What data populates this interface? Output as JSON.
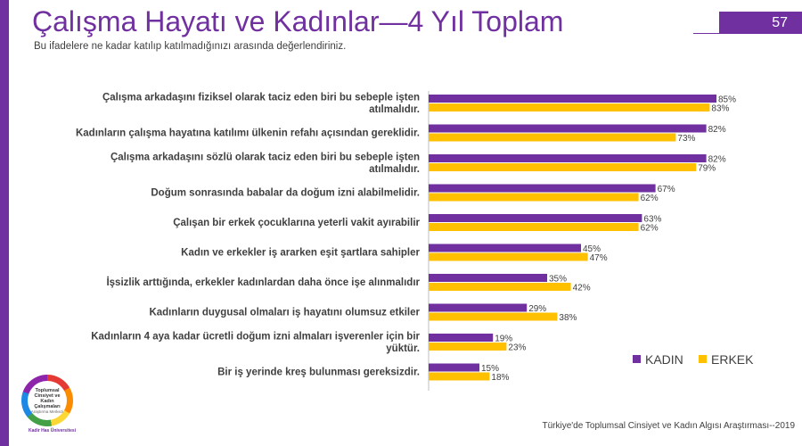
{
  "header": {
    "title": "Çalışma Hayatı ve Kadınlar—4 Yıl Toplam",
    "subtitle": "Bu ifadelere ne kadar katılıp katılmadığınızı arasında değerlendiriniz.",
    "page_number": "57"
  },
  "footer": {
    "source": "Türkiye'de Toplumsal Cinsiyet ve Kadın Algısı Araştırması--2019"
  },
  "logo": {
    "line1": "Toplumsal Cinsiyet ve",
    "line2": "Kadın Çalışmaları",
    "line3": "Araştırma Merkezi",
    "university": "Kadir Has Üniversitesi"
  },
  "colors": {
    "accent": "#7030a0",
    "kadin": "#7030a0",
    "erkek": "#ffc000"
  },
  "chart_data": {
    "type": "bar",
    "orientation": "horizontal",
    "categories": [
      [
        "Çalışma arkadaşını fiziksel olarak taciz eden biri bu sebeple işten",
        "atılmalıdır."
      ],
      [
        "Kadınların çalışma hayatına katılımı ülkenin refahı açısından gereklidir."
      ],
      [
        "Çalışma arkadaşını sözlü olarak taciz eden biri bu sebeple işten",
        "atılmalıdır."
      ],
      [
        "Doğum sonrasında babalar da doğum izni alabilmelidir."
      ],
      [
        "Çalışan bir erkek çocuklarına yeterli vakit ayırabilir"
      ],
      [
        "Kadın ve erkekler iş ararken eşit şartlara sahipler"
      ],
      [
        "İşsizlik arttığında, erkekler kadınlardan daha önce işe alınmalıdır"
      ],
      [
        "Kadınların duygusal olmaları iş hayatını olumsuz etkiler"
      ],
      [
        "Kadınların 4 aya kadar ücretli doğum izni almaları işverenler için bir",
        "yüktür."
      ],
      [
        "Bir iş yerinde kreş bulunması gereksizdir."
      ]
    ],
    "series": [
      {
        "name": "KADIN",
        "color": "#7030a0",
        "values": [
          85,
          82,
          82,
          67,
          63,
          45,
          35,
          29,
          19,
          15
        ]
      },
      {
        "name": "ERKEK",
        "color": "#ffc000",
        "values": [
          83,
          73,
          79,
          62,
          62,
          47,
          42,
          38,
          23,
          18
        ]
      }
    ],
    "value_suffix": "%",
    "xlim": [
      0,
      100
    ],
    "legend_position": "bottom-right",
    "grid": false
  }
}
